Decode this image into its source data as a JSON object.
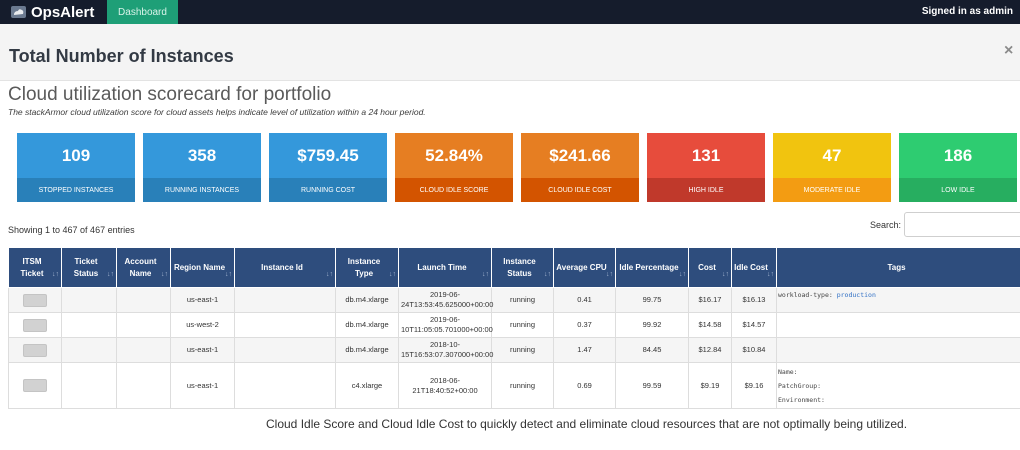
{
  "app": {
    "brand": "OpsAlert",
    "nav_tab": "Dashboard",
    "signed_in": "Signed in as admin"
  },
  "modal": {
    "title": "Total Number of Instances",
    "close": "×"
  },
  "scorecard": {
    "title": "Cloud utilization scorecard for portfolio",
    "subtitle": "The stackArmor cloud utilization score for cloud assets helps indicate level of utilization within a 24 hour period."
  },
  "tiles": [
    {
      "value": "109",
      "label": "STOPPED INSTANCES",
      "color": "#3498db",
      "label_color": "#2980b9"
    },
    {
      "value": "358",
      "label": "RUNNING INSTANCES",
      "color": "#3498db",
      "label_color": "#2980b9"
    },
    {
      "value": "$759.45",
      "label": "RUNNING COST",
      "color": "#3498db",
      "label_color": "#2980b9"
    },
    {
      "value": "52.84%",
      "label": "CLOUD IDLE SCORE",
      "color": "#e67e22",
      "label_color": "#d35400"
    },
    {
      "value": "$241.66",
      "label": "CLOUD IDLE COST",
      "color": "#e67e22",
      "label_color": "#d35400"
    },
    {
      "value": "131",
      "label": "HIGH IDLE",
      "color": "#e74c3c",
      "label_color": "#c0392b"
    },
    {
      "value": "47",
      "label": "MODERATE IDLE",
      "color": "#f1c40f",
      "label_color": "#f39c12"
    },
    {
      "value": "186",
      "label": "LOW IDLE",
      "color": "#2ecc71",
      "label_color": "#27ae60"
    }
  ],
  "table_info": {
    "showing": "Showing 1 to 467 of 467 entries",
    "search_label": "Search:",
    "search_value": ""
  },
  "table": {
    "headers": [
      "ITSM Ticket",
      "Ticket Status",
      "Account Name",
      "Region Name",
      "Instance Id",
      "Instance Type",
      "Launch Time",
      "Instance Status",
      "Average CPU",
      "Idle Percentage",
      "Cost",
      "Idle Cost",
      "Tags"
    ],
    "rows": [
      {
        "ticket_status": "",
        "account": "",
        "region": "us-east-1",
        "instance_id": "",
        "type": "db.m4.xlarge",
        "launch_line1": "2019-06-",
        "launch_line2": "24T13:53:45.625000+00:00",
        "status": "running",
        "cpu": "0.41",
        "idle_pct": "99.75",
        "cost": "$16.17",
        "idle_cost": "$16.13"
      },
      {
        "ticket_status": "",
        "account": "",
        "region": "us-west-2",
        "instance_id": "",
        "type": "db.m4.xlarge",
        "launch_line1": "2019-06-",
        "launch_line2": "10T11:05:05.701000+00:00",
        "status": "running",
        "cpu": "0.37",
        "idle_pct": "99.92",
        "cost": "$14.58",
        "idle_cost": "$14.57"
      },
      {
        "ticket_status": "",
        "account": "",
        "region": "us-east-1",
        "instance_id": "",
        "type": "db.m4.xlarge",
        "launch_line1": "2018-10-",
        "launch_line2": "15T16:53:07.307000+00:00",
        "status": "running",
        "cpu": "1.47",
        "idle_pct": "84.45",
        "cost": "$12.84",
        "idle_cost": "$10.84"
      },
      {
        "ticket_status": "",
        "account": "",
        "region": "us-east-1",
        "instance_id": "",
        "type": "c4.xlarge",
        "launch_line1": "2018-06-",
        "launch_line2": "21T18:40:52+00:00",
        "status": "running",
        "cpu": "0.69",
        "idle_pct": "99.59",
        "cost": "$9.19",
        "idle_cost": "$9.16"
      }
    ],
    "row1_tags": [
      {
        "key": "workload-type:",
        "value": "production"
      }
    ],
    "row4_tags": [
      {
        "key": "Name:",
        "value": ""
      },
      {
        "key": "PatchGroup:",
        "value": ""
      },
      {
        "key": "Environment:",
        "value": ""
      }
    ]
  },
  "caption": "Cloud Idle Score and Cloud Idle Cost to quickly detect and eliminate cloud resources that are not optimally being utilized."
}
